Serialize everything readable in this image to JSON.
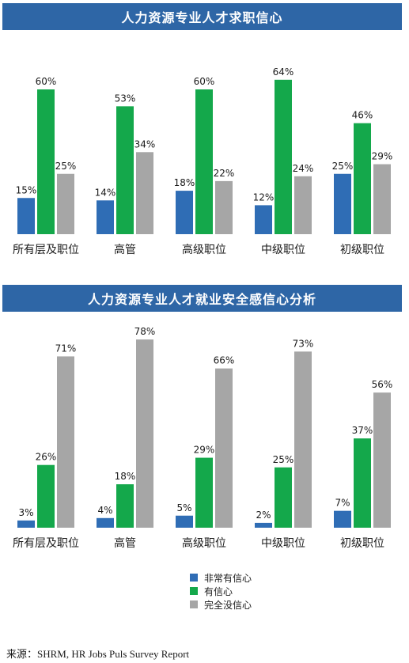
{
  "colors": {
    "header_bg": "#2e66a6",
    "very_confident": "#2f6db5",
    "confident": "#14a84b",
    "not_confident": "#a6a6a6"
  },
  "chart_data": [
    {
      "type": "bar",
      "title": "人力资源专业人才求职信心",
      "categories": [
        "所有层及职位",
        "高管",
        "高级职位",
        "中级职位",
        "初级职位"
      ],
      "series": [
        {
          "name": "非常有信心",
          "values": [
            15,
            14,
            18,
            12,
            25
          ]
        },
        {
          "name": "有信心",
          "values": [
            60,
            53,
            60,
            64,
            46
          ]
        },
        {
          "name": "完全没信心",
          "values": [
            25,
            34,
            22,
            24,
            29
          ]
        }
      ],
      "ylim": [
        0,
        80
      ],
      "unit": "%",
      "grid": false
    },
    {
      "type": "bar",
      "title": "人力资源专业人才就业安全感信心分析",
      "categories": [
        "所有层及职位",
        "高管",
        "高级职位",
        "中级职位",
        "初级职位"
      ],
      "series": [
        {
          "name": "非常有信心",
          "values": [
            3,
            4,
            5,
            2,
            7
          ]
        },
        {
          "name": "有信心",
          "values": [
            26,
            18,
            29,
            25,
            37
          ]
        },
        {
          "name": "完全没信心",
          "values": [
            71,
            78,
            66,
            73,
            56
          ]
        }
      ],
      "ylim": [
        0,
        90
      ],
      "unit": "%",
      "grid": false
    }
  ],
  "legend": {
    "placement": "bottom",
    "items": [
      "非常有信心",
      "有信心",
      "完全没信心"
    ]
  },
  "source": "来源：SHRM, HR Jobs Puls Survey Report"
}
